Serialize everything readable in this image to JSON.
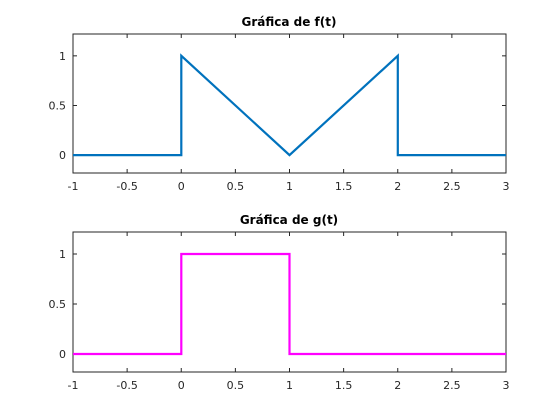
{
  "chart_data": [
    {
      "type": "line",
      "title": "Gráfica de f(t)",
      "xlabel": "",
      "ylabel": "",
      "xlim": [
        -1,
        3
      ],
      "ylim": [
        -0.18,
        1.22
      ],
      "xticks": [
        -1,
        -0.5,
        0,
        0.5,
        1,
        1.5,
        2,
        2.5,
        3
      ],
      "xtick_labels": [
        "-1",
        "-0.5",
        "0",
        "0.5",
        "1",
        "1.5",
        "2",
        "2.5",
        "3"
      ],
      "yticks": [
        0,
        0.5,
        1
      ],
      "ytick_labels": [
        "0",
        "0.5",
        "1"
      ],
      "grid": false,
      "series": [
        {
          "color": "#0072BD",
          "x": [
            -1,
            0,
            0,
            1,
            2,
            2,
            3
          ],
          "y": [
            0,
            0,
            1,
            0,
            1,
            0,
            0
          ]
        }
      ]
    },
    {
      "type": "line",
      "title": "Gráfica de g(t)",
      "xlabel": "",
      "ylabel": "",
      "xlim": [
        -1,
        3
      ],
      "ylim": [
        -0.18,
        1.22
      ],
      "xticks": [
        -1,
        -0.5,
        0,
        0.5,
        1,
        1.5,
        2,
        2.5,
        3
      ],
      "xtick_labels": [
        "-1",
        "-0.5",
        "0",
        "0.5",
        "1",
        "1.5",
        "2",
        "2.5",
        "3"
      ],
      "yticks": [
        0,
        0.5,
        1
      ],
      "ytick_labels": [
        "0",
        "0.5",
        "1"
      ],
      "grid": false,
      "series": [
        {
          "color": "#FF00FF",
          "x": [
            -1,
            0,
            0,
            1,
            1,
            3
          ],
          "y": [
            0,
            0,
            1,
            1,
            0,
            0
          ]
        }
      ]
    }
  ]
}
